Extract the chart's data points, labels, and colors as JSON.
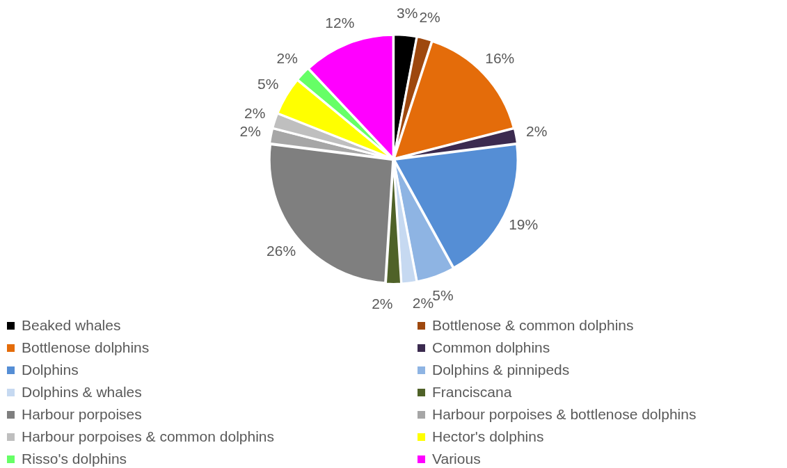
{
  "chart_data": {
    "type": "pie",
    "categories": [
      "Beaked whales",
      "Bottlenose & common dolphins",
      "Bottlenose dolphins",
      "Common dolphins",
      "Dolphins",
      "Dolphins & pinnipeds",
      "Dolphins & whales",
      "Franciscana",
      "Harbour porpoises",
      "Harbour porpoises & bottlenose dolphins",
      "Harbour porpoises & common dolphins",
      "Hector's dolphins",
      "Risso's dolphins",
      "Various"
    ],
    "values": [
      3,
      2,
      16,
      2,
      19,
      5,
      2,
      2,
      26,
      2,
      2,
      5,
      2,
      12
    ],
    "value_labels": [
      "3%",
      "2%",
      "16%",
      "2%",
      "19%",
      "5%",
      "2%",
      "2%",
      "26%",
      "2%",
      "2%",
      "5%",
      "2%",
      "12%"
    ],
    "colors": [
      "#000000",
      "#9e480e",
      "#e46c0a",
      "#3b2a4f",
      "#558ed5",
      "#8eb4e3",
      "#c6d9f1",
      "#4f6228",
      "#7f7f7f",
      "#a6a6a6",
      "#bfbfbf",
      "#ffff00",
      "#66ff66",
      "#ff00ff"
    ],
    "legend": "bottom"
  }
}
